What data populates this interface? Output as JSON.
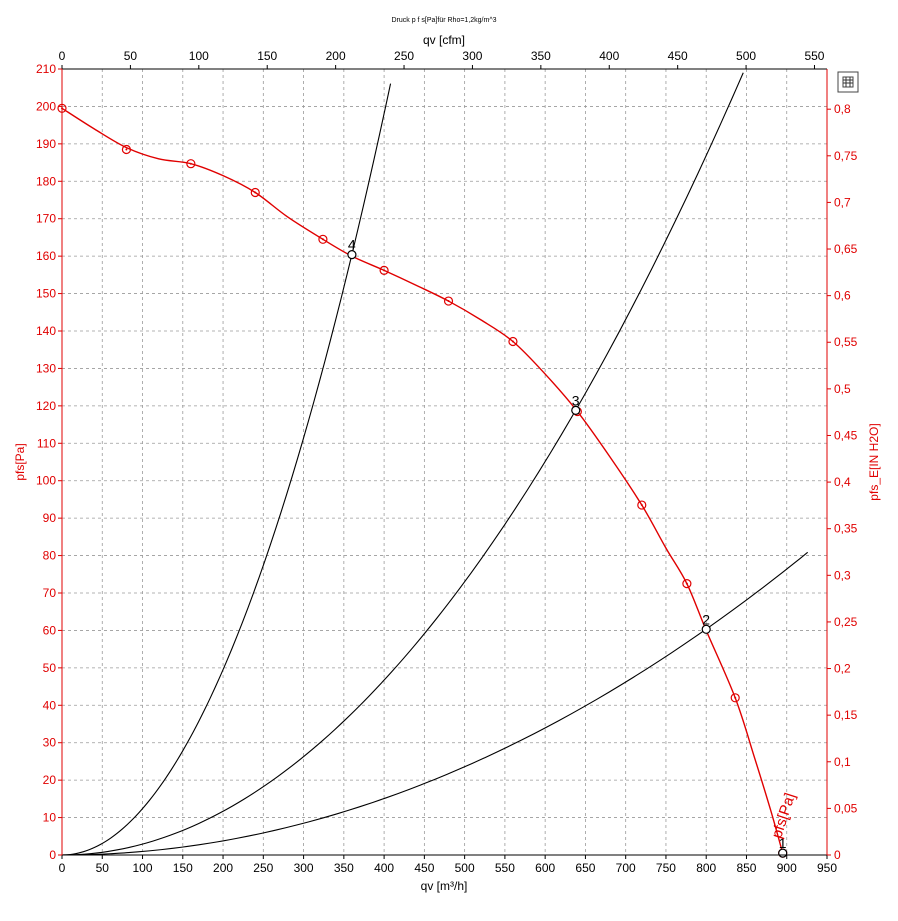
{
  "chart_data": {
    "type": "line",
    "title": "Druck p f s[Pa]für Rho=1,2kg/m^3",
    "x_bottom": {
      "label": "qv [m³/h]",
      "range": [
        0,
        950
      ],
      "ticks": [
        0,
        50,
        100,
        150,
        200,
        250,
        300,
        350,
        400,
        450,
        500,
        550,
        600,
        650,
        700,
        750,
        800,
        850,
        900,
        950
      ]
    },
    "x_top": {
      "label": "qv [cfm]",
      "range": [
        0,
        559.15
      ],
      "ticks": [
        0,
        50,
        100,
        150,
        200,
        250,
        300,
        350,
        400,
        450,
        500,
        550
      ]
    },
    "y_left": {
      "label": "pfs[Pa]",
      "range": [
        0,
        210
      ],
      "ticks": [
        0,
        10,
        20,
        30,
        40,
        50,
        60,
        70,
        80,
        90,
        100,
        110,
        120,
        130,
        140,
        150,
        160,
        170,
        180,
        190,
        200,
        210
      ]
    },
    "y_right": {
      "label": "pfs_E[IN H2O]",
      "range": [
        0,
        0.8431
      ],
      "ticks": [
        "0",
        "0,05",
        "0,1",
        "0,15",
        "0,2",
        "0,25",
        "0,3",
        "0,35",
        "0,4",
        "0,45",
        "0,5",
        "0,55",
        "0,6",
        "0,65",
        "0,7",
        "0,75",
        "0,8"
      ]
    },
    "grid": true,
    "series": [
      {
        "name": "pfs[Pa]",
        "color": "#e00000",
        "curve": [
          [
            0,
            199.5
          ],
          [
            40,
            194
          ],
          [
            80,
            189
          ],
          [
            120,
            186
          ],
          [
            160,
            184.7
          ],
          [
            200,
            181.5
          ],
          [
            240,
            177
          ],
          [
            280,
            170.5
          ],
          [
            324,
            164.5
          ],
          [
            360,
            160
          ],
          [
            400,
            156.2
          ],
          [
            440,
            152.2
          ],
          [
            480,
            148
          ],
          [
            520,
            143
          ],
          [
            560,
            137.2
          ],
          [
            600,
            128.5
          ],
          [
            640,
            118.5
          ],
          [
            680,
            106.5
          ],
          [
            720,
            93.5
          ],
          [
            750,
            82
          ],
          [
            776,
            72.5
          ],
          [
            800,
            60
          ],
          [
            836,
            42
          ],
          [
            860,
            26
          ],
          [
            880,
            12
          ],
          [
            895,
            0.5
          ]
        ],
        "markers": [
          [
            0,
            199.5
          ],
          [
            80,
            188.5
          ],
          [
            160,
            184.7
          ],
          [
            240,
            177
          ],
          [
            324,
            164.5
          ],
          [
            400,
            156.2
          ],
          [
            480,
            148
          ],
          [
            560,
            137.2
          ],
          [
            640,
            118.5
          ],
          [
            720,
            93.5
          ],
          [
            776,
            72.5
          ],
          [
            836,
            42
          ],
          [
            895,
            0.5
          ]
        ]
      },
      {
        "name": "",
        "color": "#000000",
        "k": 0.001238,
        "xmax": 408
      },
      {
        "name": "",
        "color": "#000000",
        "k": 0.000292,
        "xmax": 846
      },
      {
        "name": "",
        "color": "#000000",
        "k": 9.43e-05,
        "xmax": 926
      }
    ],
    "operating_points": [
      {
        "label": "1",
        "x": 895,
        "y": 0.5
      },
      {
        "label": "2",
        "x": 800,
        "y": 60.3
      },
      {
        "label": "3",
        "x": 638,
        "y": 118.8
      },
      {
        "label": "4",
        "x": 360,
        "y": 160.4
      }
    ],
    "annotations": [
      {
        "text": "pfs[Pa]",
        "x": 895,
        "y": 1,
        "rotate": -72,
        "color": "#e00000"
      }
    ]
  },
  "toolbar": {
    "icon": "fit-view-icon"
  }
}
